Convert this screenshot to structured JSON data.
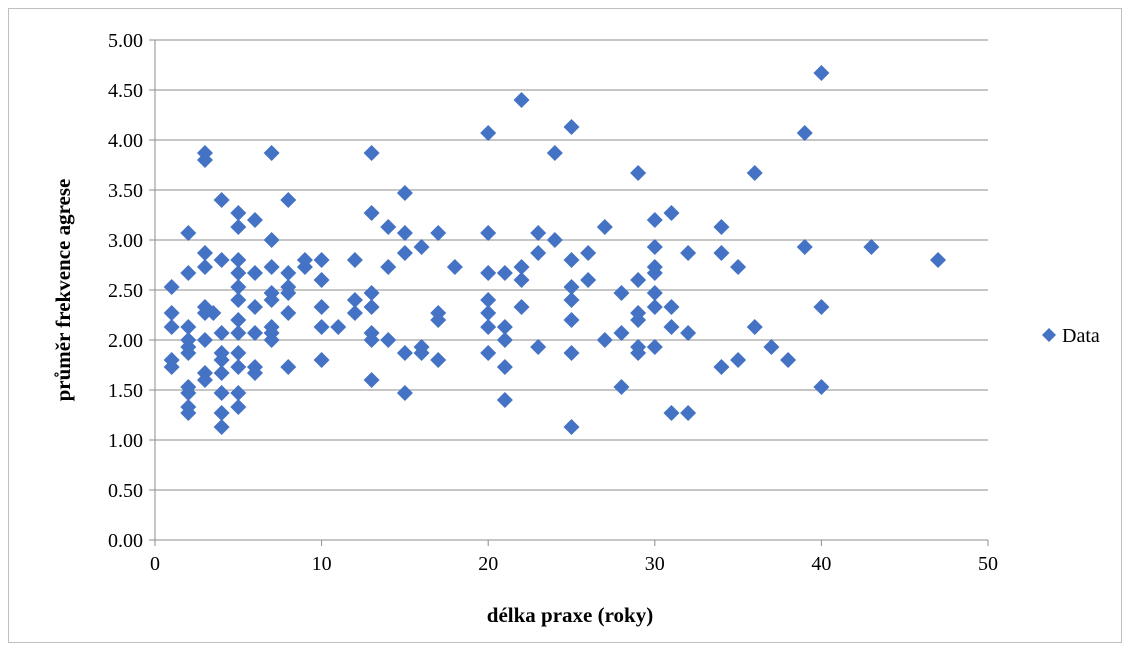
{
  "chart_data": {
    "type": "scatter",
    "title": "",
    "xlabel": "délka praxe (roky)",
    "ylabel": "průměr frekvence agrese",
    "xlim": [
      0,
      50
    ],
    "ylim": [
      0,
      5
    ],
    "xticks": [
      0,
      10,
      20,
      30,
      40,
      50
    ],
    "yticks": [
      "0.00",
      "0.50",
      "1.00",
      "1.50",
      "2.00",
      "2.50",
      "3.00",
      "3.50",
      "4.00",
      "4.50",
      "5.00"
    ],
    "grid": "horizontal",
    "legend": "right",
    "marker_color": "#4472c4",
    "series": [
      {
        "name": "Data",
        "points": [
          [
            1,
            2.53
          ],
          [
            1,
            2.27
          ],
          [
            1,
            2.13
          ],
          [
            1,
            1.8
          ],
          [
            1,
            1.73
          ],
          [
            2,
            3.07
          ],
          [
            2,
            2.67
          ],
          [
            2,
            2.13
          ],
          [
            2,
            2.0
          ],
          [
            2,
            1.93
          ],
          [
            2,
            1.87
          ],
          [
            2,
            1.53
          ],
          [
            2,
            1.47
          ],
          [
            2,
            1.33
          ],
          [
            2,
            1.27
          ],
          [
            3,
            3.87
          ],
          [
            3,
            3.8
          ],
          [
            3,
            2.87
          ],
          [
            3,
            2.73
          ],
          [
            3,
            2.33
          ],
          [
            3,
            2.27
          ],
          [
            3,
            2.0
          ],
          [
            3,
            1.67
          ],
          [
            3,
            1.6
          ],
          [
            3.5,
            2.27
          ],
          [
            4,
            3.4
          ],
          [
            4,
            2.8
          ],
          [
            4,
            2.07
          ],
          [
            4,
            1.87
          ],
          [
            4,
            1.8
          ],
          [
            4,
            1.67
          ],
          [
            4,
            1.47
          ],
          [
            4,
            1.27
          ],
          [
            4,
            1.13
          ],
          [
            5,
            3.27
          ],
          [
            5,
            3.13
          ],
          [
            5,
            2.8
          ],
          [
            5,
            2.67
          ],
          [
            5,
            2.53
          ],
          [
            5,
            2.4
          ],
          [
            5,
            2.2
          ],
          [
            5,
            2.07
          ],
          [
            5,
            1.87
          ],
          [
            5,
            1.73
          ],
          [
            5,
            1.47
          ],
          [
            5,
            1.33
          ],
          [
            6,
            3.2
          ],
          [
            6,
            2.67
          ],
          [
            6,
            2.33
          ],
          [
            6,
            2.07
          ],
          [
            6,
            1.73
          ],
          [
            6,
            1.67
          ],
          [
            7,
            3.87
          ],
          [
            7,
            3.0
          ],
          [
            7,
            2.73
          ],
          [
            7,
            2.47
          ],
          [
            7,
            2.4
          ],
          [
            7,
            2.13
          ],
          [
            7,
            2.07
          ],
          [
            7,
            2.0
          ],
          [
            8,
            3.4
          ],
          [
            8,
            2.67
          ],
          [
            8,
            2.53
          ],
          [
            8,
            2.47
          ],
          [
            8,
            2.27
          ],
          [
            8,
            1.73
          ],
          [
            9,
            2.8
          ],
          [
            9,
            2.73
          ],
          [
            10,
            2.8
          ],
          [
            10,
            2.6
          ],
          [
            10,
            2.33
          ],
          [
            10,
            2.13
          ],
          [
            10,
            1.8
          ],
          [
            11,
            2.13
          ],
          [
            12,
            2.8
          ],
          [
            12,
            2.4
          ],
          [
            12,
            2.27
          ],
          [
            13,
            3.87
          ],
          [
            13,
            3.27
          ],
          [
            13,
            2.47
          ],
          [
            13,
            2.33
          ],
          [
            13,
            2.07
          ],
          [
            13,
            2.0
          ],
          [
            13,
            1.6
          ],
          [
            14,
            3.13
          ],
          [
            14,
            2.73
          ],
          [
            14,
            2.0
          ],
          [
            15,
            3.47
          ],
          [
            15,
            3.07
          ],
          [
            15,
            2.87
          ],
          [
            15,
            1.87
          ],
          [
            15,
            1.47
          ],
          [
            16,
            2.93
          ],
          [
            16,
            1.93
          ],
          [
            16,
            1.87
          ],
          [
            17,
            3.07
          ],
          [
            17,
            2.27
          ],
          [
            17,
            2.2
          ],
          [
            17,
            1.8
          ],
          [
            18,
            2.73
          ],
          [
            20,
            4.07
          ],
          [
            20,
            3.07
          ],
          [
            20,
            2.67
          ],
          [
            20,
            2.4
          ],
          [
            20,
            2.27
          ],
          [
            20,
            2.13
          ],
          [
            20,
            1.87
          ],
          [
            21,
            2.67
          ],
          [
            21,
            2.13
          ],
          [
            21,
            2.0
          ],
          [
            21,
            1.73
          ],
          [
            21,
            1.4
          ],
          [
            22,
            4.4
          ],
          [
            22,
            2.73
          ],
          [
            22,
            2.6
          ],
          [
            22,
            2.33
          ],
          [
            23,
            3.07
          ],
          [
            23,
            2.87
          ],
          [
            23,
            1.93
          ],
          [
            24,
            3.87
          ],
          [
            24,
            3.0
          ],
          [
            25,
            4.13
          ],
          [
            25,
            2.8
          ],
          [
            25,
            2.53
          ],
          [
            25,
            2.4
          ],
          [
            25,
            2.2
          ],
          [
            25,
            1.87
          ],
          [
            25,
            1.13
          ],
          [
            26,
            2.87
          ],
          [
            26,
            2.6
          ],
          [
            27,
            3.13
          ],
          [
            27,
            2.0
          ],
          [
            28,
            2.47
          ],
          [
            28,
            2.07
          ],
          [
            28,
            1.53
          ],
          [
            29,
            3.67
          ],
          [
            29,
            2.6
          ],
          [
            29,
            2.27
          ],
          [
            29,
            2.2
          ],
          [
            29,
            1.93
          ],
          [
            29,
            1.87
          ],
          [
            30,
            3.2
          ],
          [
            30,
            2.93
          ],
          [
            30,
            2.73
          ],
          [
            30,
            2.67
          ],
          [
            30,
            2.47
          ],
          [
            30,
            2.33
          ],
          [
            30,
            1.93
          ],
          [
            31,
            3.27
          ],
          [
            31,
            2.33
          ],
          [
            31,
            2.13
          ],
          [
            31,
            1.27
          ],
          [
            32,
            2.87
          ],
          [
            32,
            2.07
          ],
          [
            32,
            1.27
          ],
          [
            34,
            3.13
          ],
          [
            34,
            2.87
          ],
          [
            34,
            1.73
          ],
          [
            35,
            2.73
          ],
          [
            35,
            1.8
          ],
          [
            36,
            3.67
          ],
          [
            36,
            2.13
          ],
          [
            37,
            1.93
          ],
          [
            38,
            1.8
          ],
          [
            39,
            4.07
          ],
          [
            39,
            2.93
          ],
          [
            40,
            4.67
          ],
          [
            40,
            2.33
          ],
          [
            40,
            1.53
          ],
          [
            43,
            2.93
          ],
          [
            47,
            2.8
          ]
        ]
      }
    ]
  }
}
